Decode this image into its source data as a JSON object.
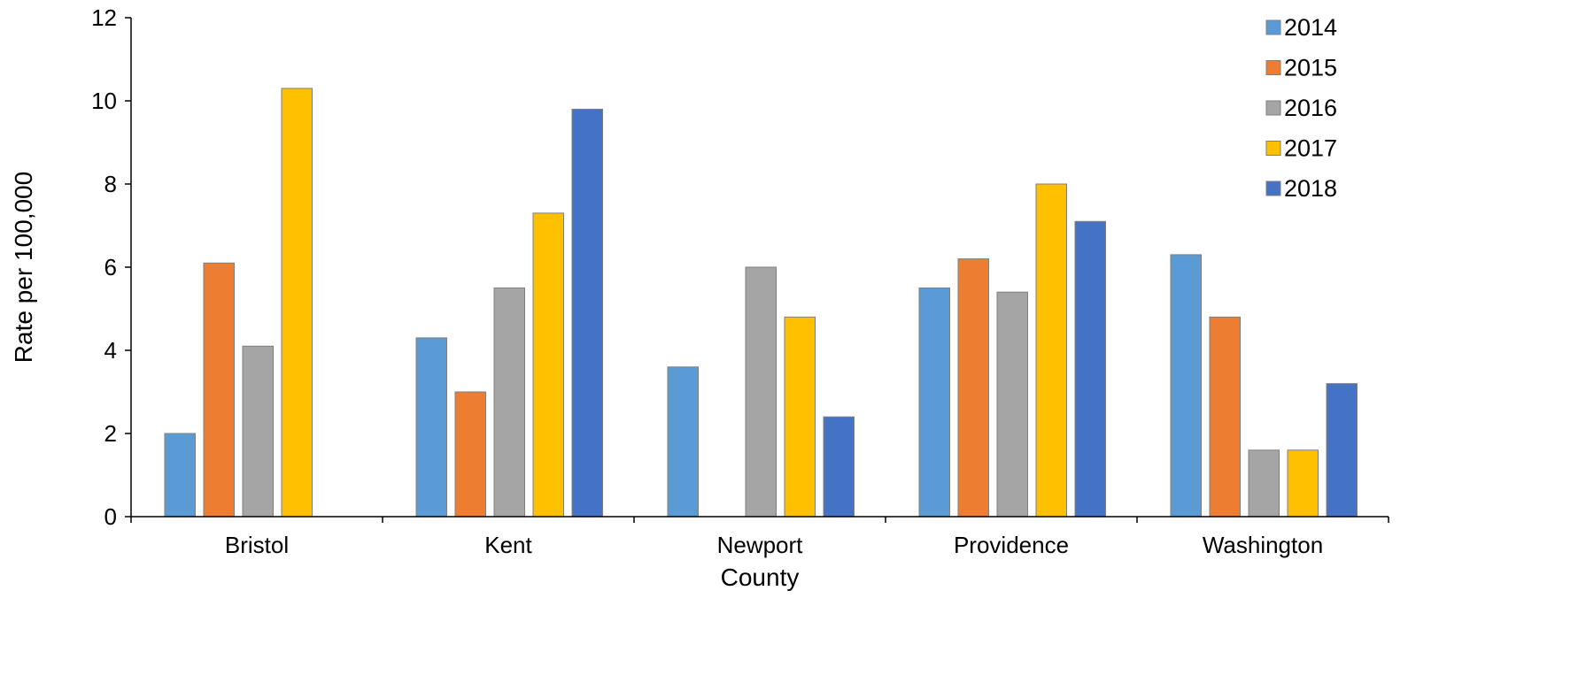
{
  "chart_data": {
    "type": "bar",
    "title": "",
    "xlabel": "County",
    "ylabel": "Rate per 100,000",
    "ylim": [
      0,
      12
    ],
    "yticks": [
      0,
      2,
      4,
      6,
      8,
      10,
      12
    ],
    "grid": false,
    "legend_position": "top-right",
    "categories": [
      "Bristol",
      "Kent",
      "Newport",
      "Providence",
      "Washington"
    ],
    "series": [
      {
        "name": "2014",
        "color": "#5B9BD5",
        "values": [
          2.0,
          4.3,
          3.6,
          5.5,
          6.3
        ]
      },
      {
        "name": "2015",
        "color": "#ED7D31",
        "values": [
          6.1,
          3.0,
          null,
          6.2,
          4.8
        ]
      },
      {
        "name": "2016",
        "color": "#A5A5A5",
        "values": [
          4.1,
          5.5,
          6.0,
          5.4,
          1.6
        ]
      },
      {
        "name": "2017",
        "color": "#FFC000",
        "values": [
          10.3,
          7.3,
          4.8,
          8.0,
          1.6
        ]
      },
      {
        "name": "2018",
        "color": "#4472C4",
        "values": [
          null,
          9.8,
          2.4,
          7.1,
          3.2
        ]
      }
    ]
  }
}
